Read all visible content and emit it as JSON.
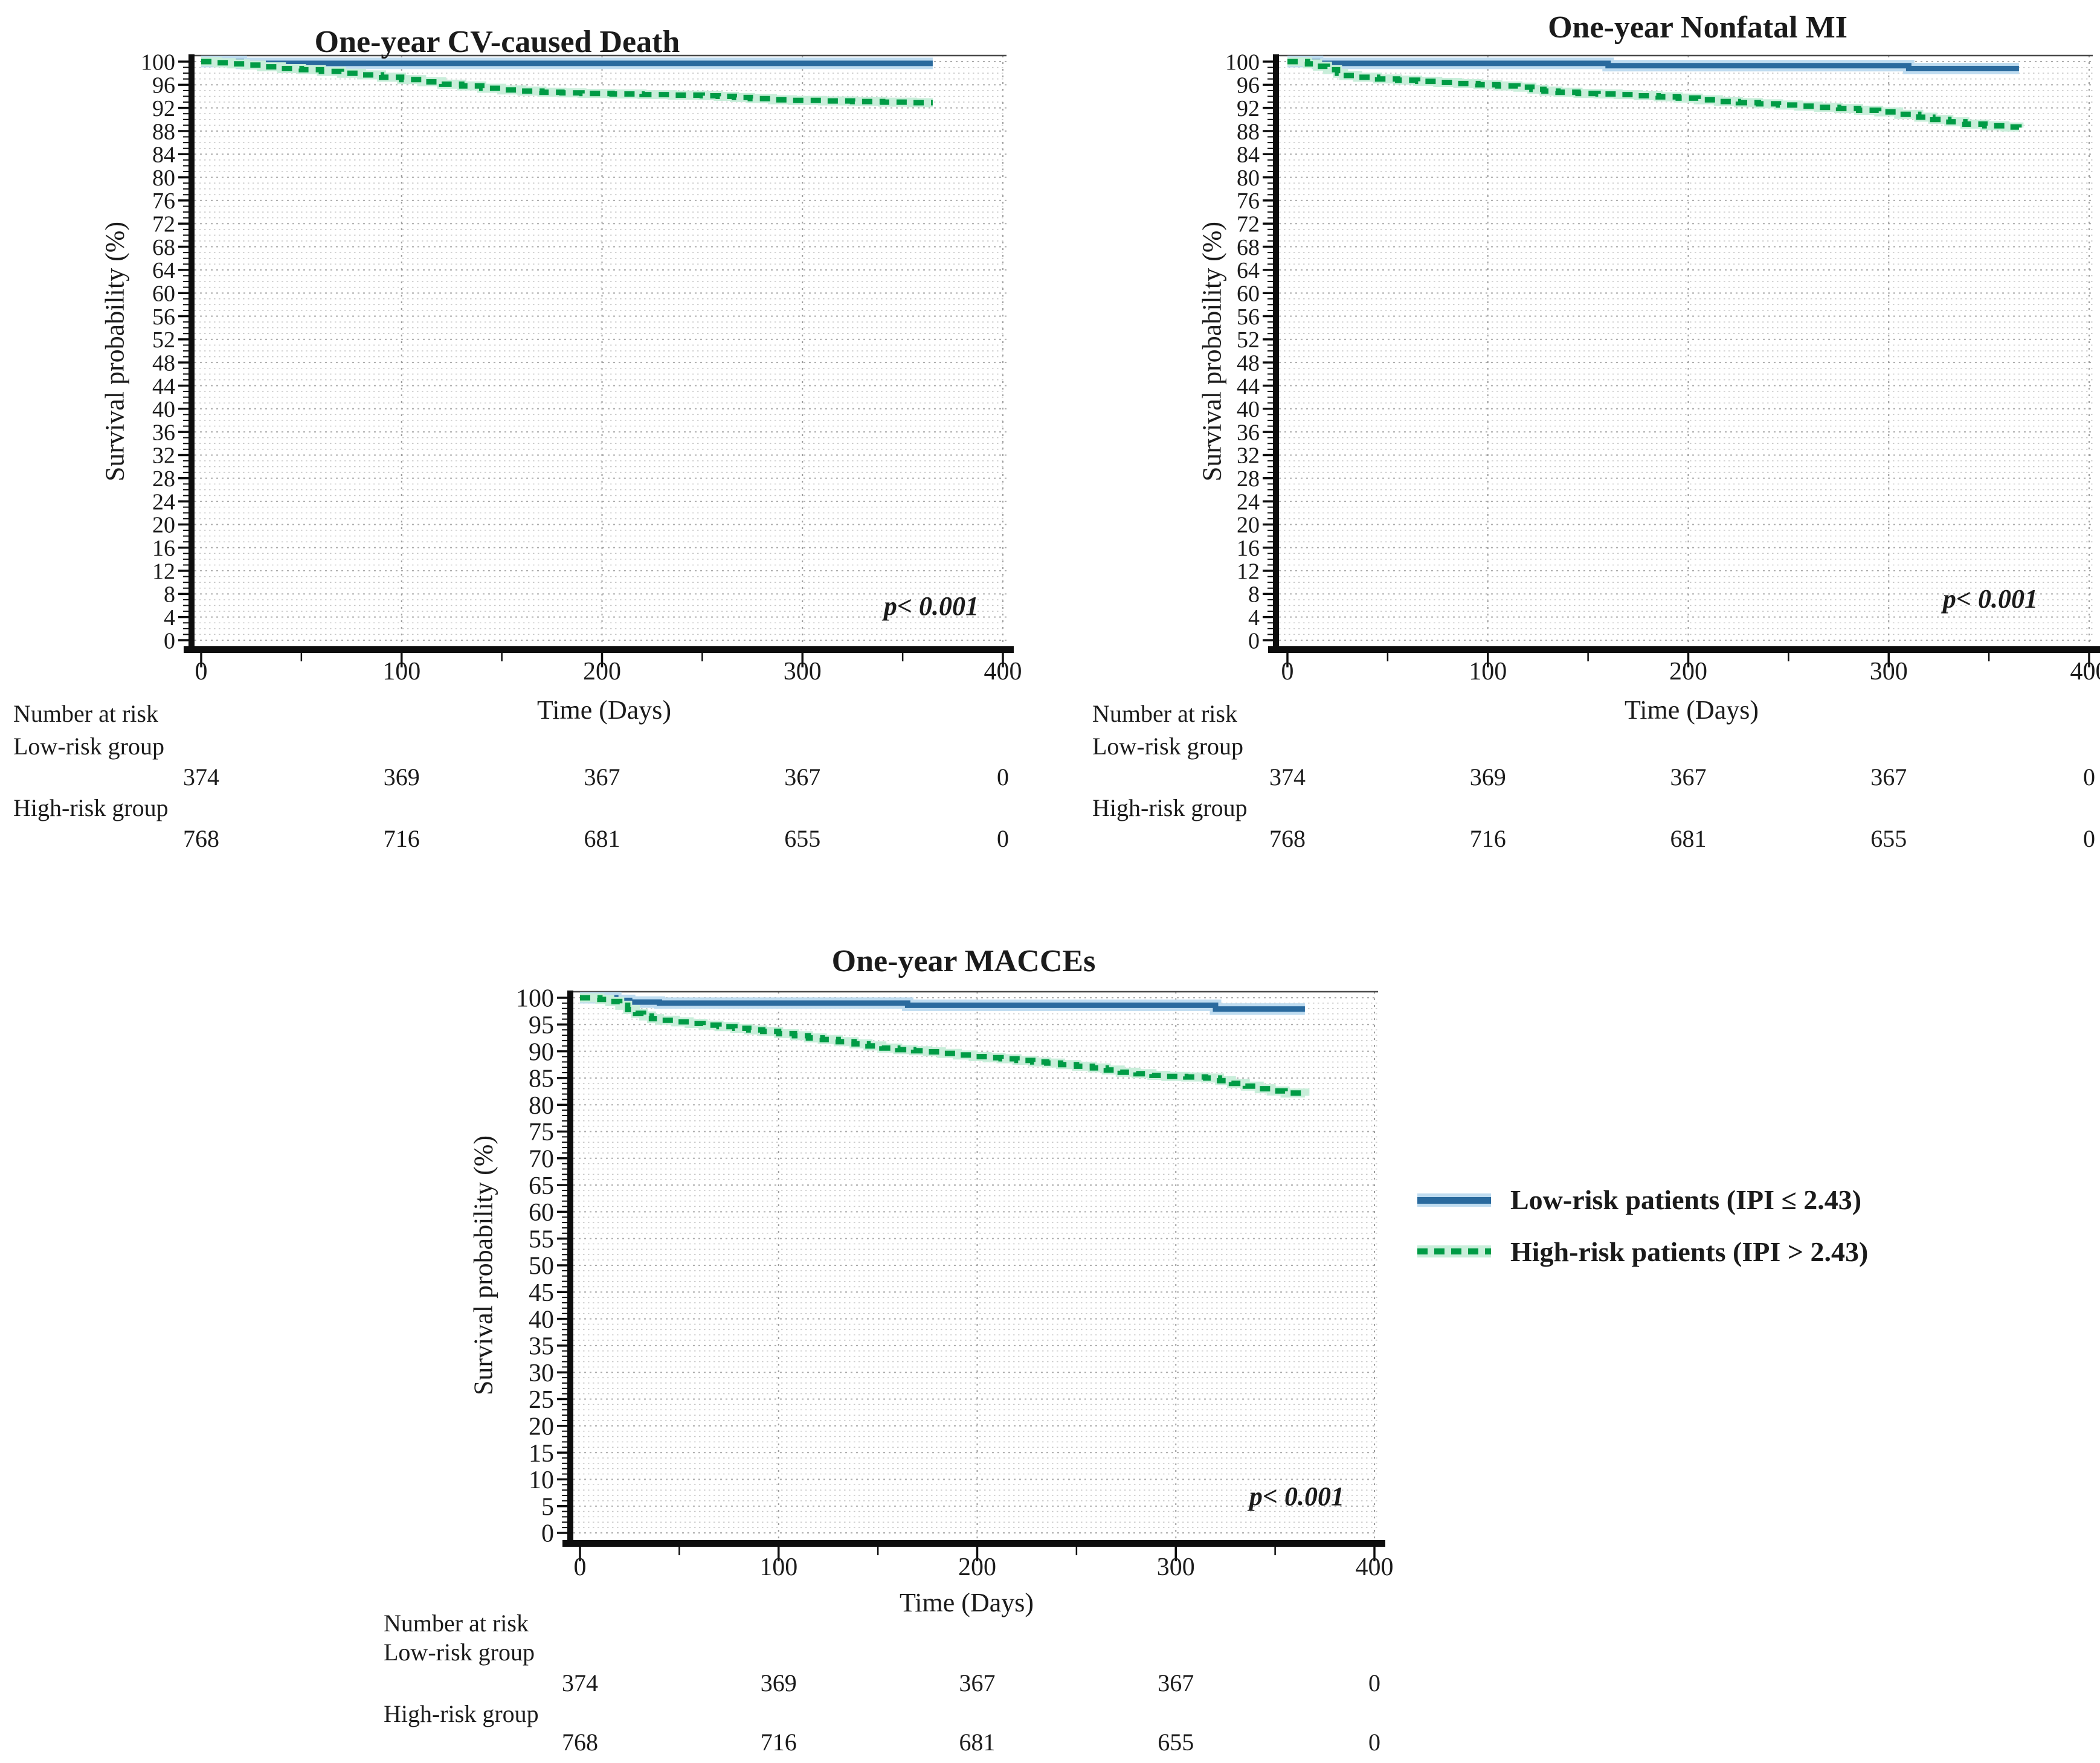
{
  "figure": {
    "background": "#ffffff",
    "text_color": "#1b1b1b",
    "accent_blue": "#2a6a9e",
    "accent_blue_halo": "#bfdcf0",
    "accent_green": "#009b45",
    "accent_green_halo": "#c9eeda",
    "grid_minor_color": "#c7c7c7",
    "grid_major_color": "#adadad",
    "grid_vertical_color": "#9d9d9d"
  },
  "legend": {
    "items": [
      {
        "key": "low_risk",
        "label": "Low-risk patients (IPI ≤ 2.43)",
        "line_style": "solid",
        "color": "#2a6a9e",
        "halo": "#bfdcf0"
      },
      {
        "key": "high_risk",
        "label": "High-risk patients (IPI > 2.43)",
        "line_style": "dashed",
        "color": "#009b45",
        "halo": "#c9eeda"
      }
    ]
  },
  "chart_data": [
    {
      "id": "cv_death",
      "type": "line",
      "subtype": "kaplan-meier-step",
      "title": "One-year CV-caused Death",
      "xlabel": "Time (Days)",
      "ylabel": "Survival probability (%)",
      "p_value": "p< 0.001",
      "xlim": [
        0,
        400
      ],
      "ylim": [
        0,
        100
      ],
      "x_ticks": [
        0,
        100,
        200,
        300,
        400
      ],
      "x_minor_step": 50,
      "y_ticks": [
        0,
        4,
        8,
        12,
        16,
        20,
        24,
        28,
        32,
        36,
        40,
        44,
        48,
        52,
        56,
        60,
        64,
        68,
        72,
        76,
        80,
        84,
        88,
        92,
        96,
        100
      ],
      "grid": "dotted-horizontal-every-1-vertical-at-majors",
      "legend_position": "none",
      "series": [
        {
          "name": "Low-risk patients (IPI ≤ 2.43)",
          "style": "solid",
          "color": "#2a6a9e",
          "halo": "#bfdcf0",
          "points": [
            [
              0,
              100
            ],
            [
              20,
              99.7
            ],
            [
              365,
              99.7
            ]
          ]
        },
        {
          "name": "High-risk patients (IPI > 2.43)",
          "style": "dashed",
          "color": "#009b45",
          "halo": "#c9eeda",
          "points": [
            [
              0,
              100
            ],
            [
              8,
              99.8
            ],
            [
              15,
              99.6
            ],
            [
              22,
              99.4
            ],
            [
              30,
              99.1
            ],
            [
              40,
              98.8
            ],
            [
              50,
              98.6
            ],
            [
              60,
              98.3
            ],
            [
              70,
              98.0
            ],
            [
              80,
              97.7
            ],
            [
              90,
              97.3
            ],
            [
              100,
              96.9
            ],
            [
              110,
              96.5
            ],
            [
              120,
              96.1
            ],
            [
              130,
              95.8
            ],
            [
              140,
              95.4
            ],
            [
              150,
              95.1
            ],
            [
              160,
              94.9
            ],
            [
              170,
              94.7
            ],
            [
              180,
              94.6
            ],
            [
              190,
              94.5
            ],
            [
              205,
              94.4
            ],
            [
              220,
              94.3
            ],
            [
              235,
              94.2
            ],
            [
              250,
              94.1
            ],
            [
              258,
              94.0
            ],
            [
              266,
              93.8
            ],
            [
              274,
              93.6
            ],
            [
              285,
              93.4
            ],
            [
              295,
              93.3
            ],
            [
              310,
              93.2
            ],
            [
              325,
              93.1
            ],
            [
              340,
              93.0
            ],
            [
              355,
              92.9
            ],
            [
              365,
              92.9
            ]
          ]
        }
      ],
      "risk_table": {
        "header": "Number at risk",
        "rows": [
          {
            "label": "Low-risk group",
            "values": [
              "374",
              "369",
              "367",
              "367",
              "0"
            ]
          },
          {
            "label": "High-risk group",
            "values": [
              "768",
              "716",
              "681",
              "655",
              "0"
            ]
          }
        ]
      }
    },
    {
      "id": "nonfatal_mi",
      "type": "line",
      "subtype": "kaplan-meier-step",
      "title": "One-year Nonfatal MI",
      "xlabel": "Time (Days)",
      "ylabel": "Survival probability (%)",
      "p_value": "p< 0.001",
      "xlim": [
        0,
        400
      ],
      "ylim": [
        0,
        100
      ],
      "x_ticks": [
        0,
        100,
        200,
        300,
        400
      ],
      "x_minor_step": 50,
      "y_ticks": [
        0,
        4,
        8,
        12,
        16,
        20,
        24,
        28,
        32,
        36,
        40,
        44,
        48,
        52,
        56,
        60,
        64,
        68,
        72,
        76,
        80,
        84,
        88,
        92,
        96,
        100
      ],
      "grid": "dotted-horizontal-every-1-vertical-at-majors",
      "legend_position": "none",
      "series": [
        {
          "name": "Low-risk patients (IPI ≤ 2.43)",
          "style": "solid",
          "color": "#2a6a9e",
          "halo": "#bfdcf0",
          "points": [
            [
              0,
              100
            ],
            [
              15,
              99.7
            ],
            [
              160,
              99.3
            ],
            [
              310,
              98.8
            ],
            [
              365,
              98.8
            ]
          ]
        },
        {
          "name": "High-risk patients (IPI > 2.43)",
          "style": "dashed",
          "color": "#009b45",
          "halo": "#c9eeda",
          "points": [
            [
              0,
              100
            ],
            [
              10,
              99.6
            ],
            [
              15,
              99.2
            ],
            [
              20,
              98.6
            ],
            [
              25,
              98.0
            ],
            [
              28,
              97.6
            ],
            [
              35,
              97.3
            ],
            [
              45,
              97.0
            ],
            [
              55,
              96.8
            ],
            [
              65,
              96.6
            ],
            [
              75,
              96.4
            ],
            [
              85,
              96.2
            ],
            [
              95,
              96.0
            ],
            [
              105,
              95.8
            ],
            [
              115,
              95.6
            ],
            [
              122,
              95.2
            ],
            [
              128,
              94.9
            ],
            [
              135,
              94.7
            ],
            [
              145,
              94.5
            ],
            [
              155,
              94.4
            ],
            [
              165,
              94.3
            ],
            [
              175,
              94.1
            ],
            [
              185,
              93.9
            ],
            [
              195,
              93.7
            ],
            [
              205,
              93.4
            ],
            [
              215,
              93.1
            ],
            [
              225,
              92.9
            ],
            [
              235,
              92.7
            ],
            [
              245,
              92.5
            ],
            [
              255,
              92.3
            ],
            [
              265,
              92.1
            ],
            [
              275,
              91.9
            ],
            [
              285,
              91.6
            ],
            [
              295,
              91.3
            ],
            [
              305,
              90.9
            ],
            [
              315,
              90.4
            ],
            [
              322,
              90.0
            ],
            [
              330,
              89.6
            ],
            [
              338,
              89.2
            ],
            [
              348,
              88.9
            ],
            [
              358,
              88.7
            ],
            [
              365,
              88.6
            ]
          ]
        }
      ],
      "risk_table": {
        "header": "Number at risk",
        "rows": [
          {
            "label": "Low-risk group",
            "values": [
              "374",
              "369",
              "367",
              "367",
              "0"
            ]
          },
          {
            "label": "High-risk group",
            "values": [
              "768",
              "716",
              "681",
              "655",
              "0"
            ]
          }
        ]
      }
    },
    {
      "id": "macces",
      "type": "line",
      "subtype": "kaplan-meier-step",
      "title": "One-year MACCEs",
      "xlabel": "Time (Days)",
      "ylabel": "Survival probability (%)",
      "p_value": "p< 0.001",
      "xlim": [
        0,
        400
      ],
      "ylim": [
        0,
        100
      ],
      "x_ticks": [
        0,
        100,
        200,
        300,
        400
      ],
      "x_minor_step": 50,
      "y_ticks": [
        0,
        5,
        10,
        15,
        20,
        25,
        30,
        35,
        40,
        45,
        50,
        55,
        60,
        65,
        70,
        75,
        80,
        85,
        90,
        95,
        100
      ],
      "grid": "dotted-horizontal-every-1-vertical-at-majors",
      "legend_position": "none",
      "series": [
        {
          "name": "Low-risk patients (IPI ≤ 2.43)",
          "style": "solid",
          "color": "#2a6a9e",
          "halo": "#bfdcf0",
          "points": [
            [
              0,
              100
            ],
            [
              18,
              99.5
            ],
            [
              25,
              99.2
            ],
            [
              40,
              99.0
            ],
            [
              165,
              98.6
            ],
            [
              320,
              97.9
            ],
            [
              365,
              97.9
            ]
          ]
        },
        {
          "name": "High-risk patients (IPI > 2.43)",
          "style": "dashed",
          "color": "#009b45",
          "halo": "#c9eeda",
          "points": [
            [
              0,
              100
            ],
            [
              10,
              99.7
            ],
            [
              15,
              99.3
            ],
            [
              20,
              98.6
            ],
            [
              24,
              97.8
            ],
            [
              28,
              97.1
            ],
            [
              32,
              96.6
            ],
            [
              36,
              96.1
            ],
            [
              40,
              95.8
            ],
            [
              48,
              95.5
            ],
            [
              55,
              95.2
            ],
            [
              62,
              94.9
            ],
            [
              70,
              94.6
            ],
            [
              78,
              94.3
            ],
            [
              85,
              94.0
            ],
            [
              92,
              93.7
            ],
            [
              100,
              93.3
            ],
            [
              108,
              92.9
            ],
            [
              115,
              92.5
            ],
            [
              122,
              92.2
            ],
            [
              130,
              91.8
            ],
            [
              138,
              91.4
            ],
            [
              145,
              91.0
            ],
            [
              152,
              90.6
            ],
            [
              160,
              90.3
            ],
            [
              168,
              90.1
            ],
            [
              175,
              89.9
            ],
            [
              182,
              89.6
            ],
            [
              190,
              89.3
            ],
            [
              198,
              89.0
            ],
            [
              205,
              88.8
            ],
            [
              212,
              88.6
            ],
            [
              220,
              88.3
            ],
            [
              228,
              88.0
            ],
            [
              235,
              87.8
            ],
            [
              242,
              87.5
            ],
            [
              250,
              87.2
            ],
            [
              258,
              86.9
            ],
            [
              265,
              86.5
            ],
            [
              272,
              86.1
            ],
            [
              280,
              85.8
            ],
            [
              288,
              85.5
            ],
            [
              295,
              85.3
            ],
            [
              305,
              85.2
            ],
            [
              315,
              85.0
            ],
            [
              322,
              84.5
            ],
            [
              328,
              84.0
            ],
            [
              335,
              83.5
            ],
            [
              342,
              83.0
            ],
            [
              348,
              82.6
            ],
            [
              355,
              82.2
            ],
            [
              365,
              81.7
            ]
          ]
        }
      ],
      "risk_table": {
        "header": "Number at risk",
        "rows": [
          {
            "label": "Low-risk group",
            "values": [
              "374",
              "369",
              "367",
              "367",
              "0"
            ]
          },
          {
            "label": "High-risk group",
            "values": [
              "768",
              "716",
              "681",
              "655",
              "0"
            ]
          }
        ]
      }
    }
  ]
}
